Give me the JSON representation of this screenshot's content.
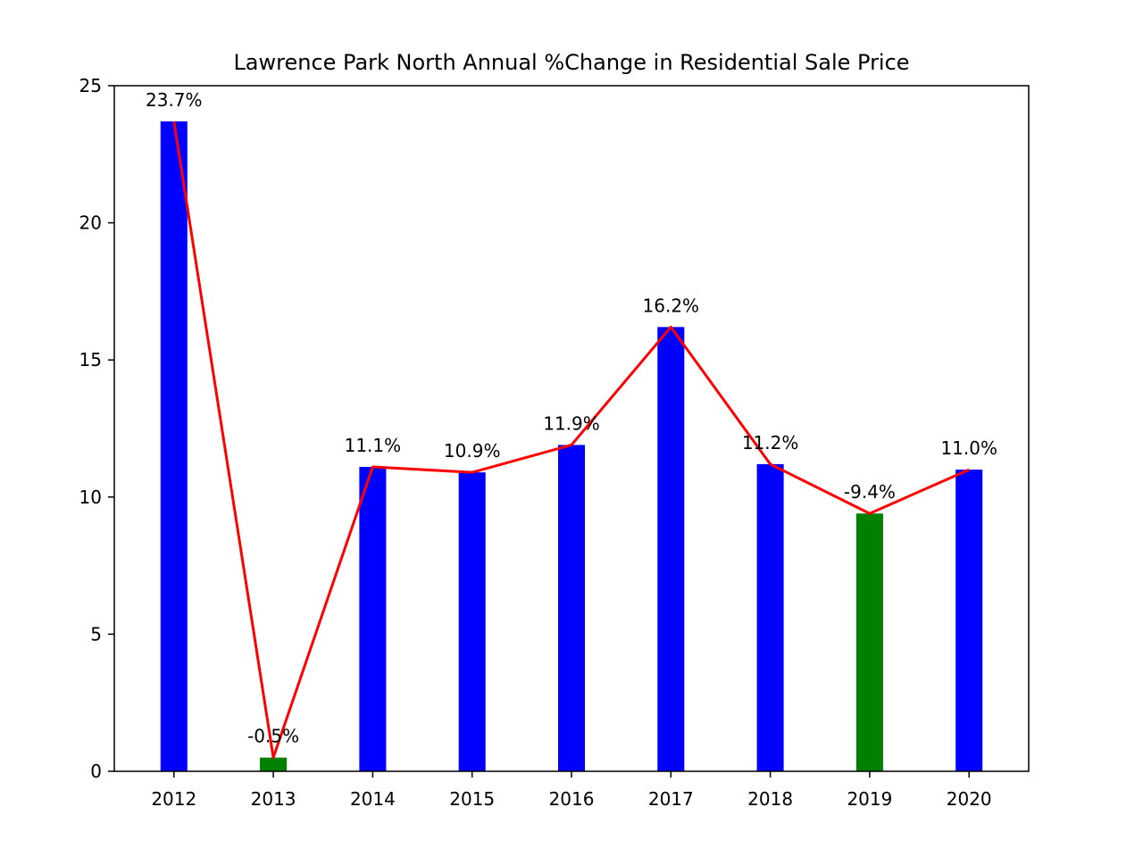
{
  "chart_data": {
    "type": "bar",
    "title": "Lawrence Park North Annual %Change in Residential Sale Price",
    "xlabel": "",
    "ylabel": "",
    "ylim": [
      0,
      25
    ],
    "yticks": [
      0,
      5,
      10,
      15,
      20,
      25
    ],
    "grid": false,
    "categories": [
      "2012",
      "2013",
      "2014",
      "2015",
      "2016",
      "2017",
      "2018",
      "2019",
      "2020"
    ],
    "values": [
      23.7,
      0.5,
      11.1,
      10.9,
      11.9,
      16.2,
      11.2,
      9.4,
      11.0
    ],
    "data_labels": [
      "23.7%",
      "-0.5%",
      "11.1%",
      "10.9%",
      "11.9%",
      "16.2%",
      "11.2%",
      "-9.4%",
      "11.0%"
    ],
    "bar_colors": [
      "#0000ff",
      "#008000",
      "#0000ff",
      "#0000ff",
      "#0000ff",
      "#0000ff",
      "#0000ff",
      "#008000",
      "#0000ff"
    ],
    "line": {
      "color": "#ff0000",
      "values": [
        23.7,
        0.5,
        11.1,
        10.9,
        11.9,
        16.2,
        11.2,
        9.4,
        11.0
      ]
    }
  }
}
